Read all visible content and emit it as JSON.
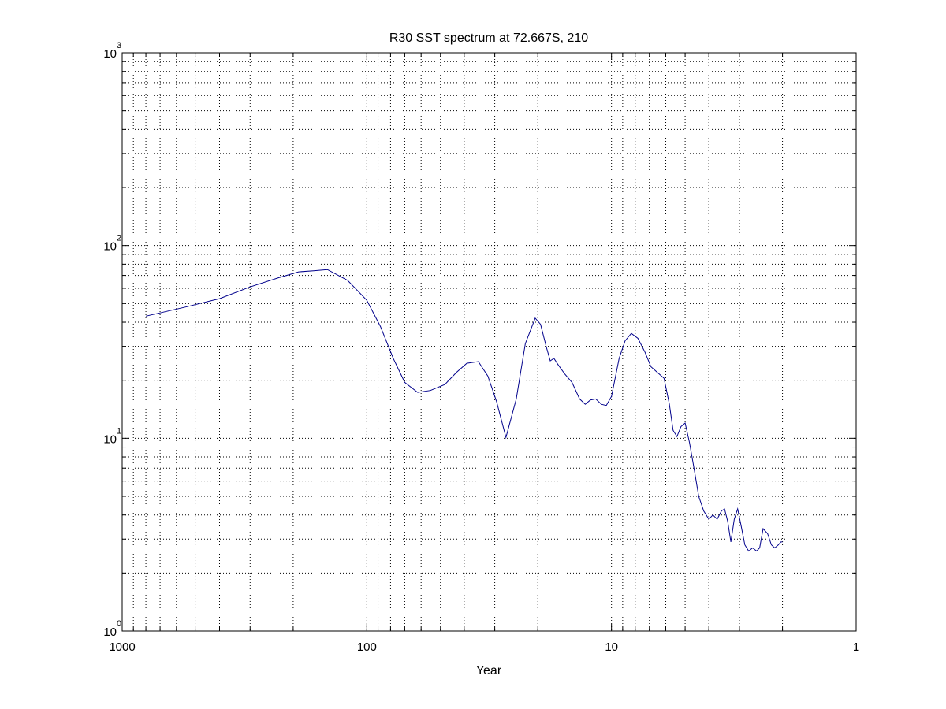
{
  "chart_data": {
    "type": "line",
    "title": "R30 SST spectrum at 72.667S, 210",
    "xlabel": "Year",
    "ylabel": "",
    "x_scale": "log",
    "y_scale": "log",
    "x_reversed": true,
    "xlim": [
      1000,
      1
    ],
    "ylim": [
      1,
      1000
    ],
    "grid": true,
    "x_ticks": [
      {
        "value": 1000,
        "label": "1000"
      },
      {
        "value": 100,
        "label": "100"
      },
      {
        "value": 10,
        "label": "10"
      },
      {
        "value": 1,
        "label": "1"
      }
    ],
    "y_ticks": [
      {
        "value": 1,
        "base": "10",
        "exp": "0"
      },
      {
        "value": 10,
        "base": "10",
        "exp": "1"
      },
      {
        "value": 100,
        "base": "10",
        "exp": "2"
      },
      {
        "value": 1000,
        "base": "10",
        "exp": "3"
      }
    ],
    "series": [
      {
        "color": "#00008b",
        "x": [
          800,
          550,
          400,
          300,
          230,
          190,
          165,
          145,
          120,
          100,
          88,
          78,
          70,
          62,
          55,
          48,
          43,
          39,
          35,
          32,
          29.5,
          27,
          24.5,
          22.5,
          20.5,
          19.5,
          18.5,
          17.8,
          17.2,
          16.5,
          15.5,
          14.5,
          13.5,
          12.8,
          12.2,
          11.6,
          11.0,
          10.5,
          10.0,
          9.3,
          8.8,
          8.3,
          7.8,
          7.3,
          6.9,
          6.5,
          6.1,
          5.8,
          5.6,
          5.4,
          5.2,
          5.0,
          4.8,
          4.6,
          4.4,
          4.2,
          4.0,
          3.85,
          3.7,
          3.55,
          3.45,
          3.35,
          3.25,
          3.15,
          3.05,
          2.95,
          2.85,
          2.75,
          2.65,
          2.55,
          2.48,
          2.4,
          2.3,
          2.22,
          2.15,
          2.08,
          2.03,
          2.0
        ],
        "y": [
          43,
          48,
          53,
          61,
          68,
          73,
          74,
          75,
          66,
          52,
          38,
          26,
          19.5,
          17.3,
          17.7,
          19,
          22,
          24.5,
          25,
          21,
          15.5,
          10.1,
          16,
          31,
          42,
          39,
          30,
          25.2,
          26,
          24,
          21.5,
          19.5,
          16,
          15,
          15.8,
          16,
          15,
          14.8,
          16.5,
          26,
          32,
          35,
          33,
          28,
          23.5,
          22,
          20.5,
          15,
          11,
          10.2,
          11.5,
          12,
          9.5,
          7,
          5,
          4.2,
          3.8,
          4.0,
          3.8,
          4.2,
          4.3,
          3.7,
          2.9,
          3.8,
          4.3,
          3.5,
          2.8,
          2.6,
          2.7,
          2.6,
          2.7,
          3.4,
          3.2,
          2.8,
          2.7,
          2.8,
          2.9,
          2.9
        ]
      }
    ]
  }
}
